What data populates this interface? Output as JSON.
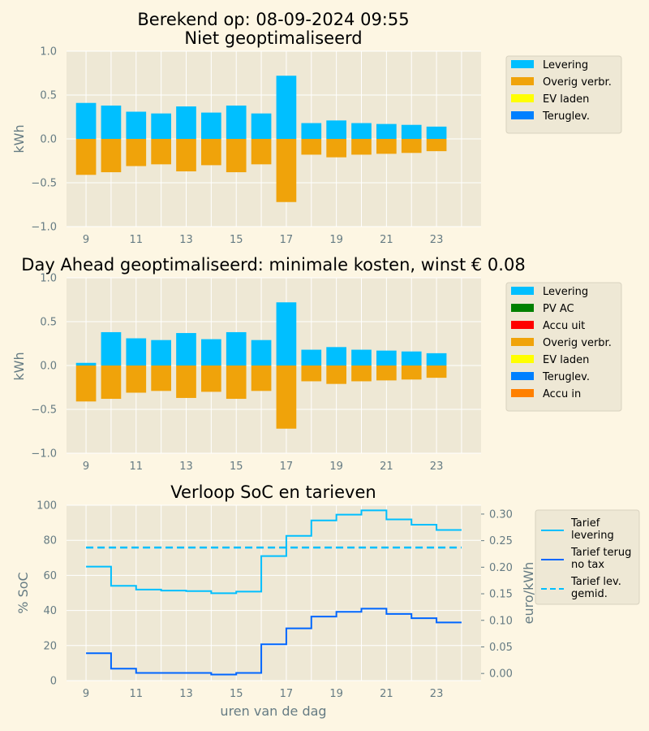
{
  "colors": {
    "background": "#fdf6e3",
    "axes_bg": "#eee8d5",
    "grid": "#ffffff",
    "tick_text": "#657b83",
    "levering": "#00bfff",
    "pv_ac": "#008000",
    "accu_uit": "#ff0000",
    "overig": "#f0a30a",
    "ev_laden": "#ffff00",
    "teruglev": "#0080ff",
    "accu_in": "#ff8000",
    "tarief_terug": "#0066ff"
  },
  "chart_data": [
    {
      "type": "bar",
      "title_line1": "Berekend op: 08-09-2024 09:55",
      "title_line2": "Niet geoptimaliseerd",
      "ylabel": "kWh",
      "xlabel": "",
      "ylim": [
        -1.0,
        1.0
      ],
      "yticks": [
        "1.0",
        "0.5",
        "0.0",
        "−0.5",
        "−1.0"
      ],
      "xticks": [
        "9",
        "11",
        "13",
        "15",
        "17",
        "19",
        "21",
        "23"
      ],
      "grid": true,
      "x": [
        9,
        10,
        11,
        12,
        13,
        14,
        15,
        16,
        17,
        18,
        19,
        20,
        21,
        22,
        23
      ],
      "series": [
        {
          "name": "Levering",
          "color_key": "levering",
          "values": [
            0.41,
            0.38,
            0.31,
            0.29,
            0.37,
            0.3,
            0.38,
            0.29,
            0.72,
            0.18,
            0.21,
            0.18,
            0.17,
            0.16,
            0.14
          ]
        },
        {
          "name": "Overig verbr.",
          "color_key": "overig",
          "values": [
            -0.41,
            -0.38,
            -0.31,
            -0.29,
            -0.37,
            -0.3,
            -0.38,
            -0.29,
            -0.72,
            -0.18,
            -0.21,
            -0.18,
            -0.17,
            -0.16,
            -0.14
          ]
        },
        {
          "name": "EV laden",
          "color_key": "ev_laden",
          "values": [
            0,
            0,
            0,
            0,
            0,
            0,
            0,
            0,
            0,
            0,
            0,
            0,
            0,
            0,
            0
          ]
        },
        {
          "name": "Teruglev.",
          "color_key": "teruglev",
          "values": [
            0,
            0,
            0,
            0,
            0,
            0,
            0,
            0,
            0,
            0,
            0,
            0,
            0,
            0,
            0
          ]
        }
      ],
      "legend_position": "right"
    },
    {
      "type": "bar",
      "title": "Day Ahead geoptimaliseerd: minimale kosten, winst € 0.08",
      "ylabel": "kWh",
      "xlabel": "",
      "ylim": [
        -1.0,
        1.0
      ],
      "yticks": [
        "1.0",
        "0.5",
        "0.0",
        "−0.5",
        "−1.0"
      ],
      "xticks": [
        "9",
        "11",
        "13",
        "15",
        "17",
        "19",
        "21",
        "23"
      ],
      "grid": true,
      "x": [
        9,
        10,
        11,
        12,
        13,
        14,
        15,
        16,
        17,
        18,
        19,
        20,
        21,
        22,
        23
      ],
      "series": [
        {
          "name": "Levering",
          "color_key": "levering",
          "values": [
            0.03,
            0.38,
            0.31,
            0.29,
            0.37,
            0.3,
            0.38,
            0.29,
            0.72,
            0.18,
            0.21,
            0.18,
            0.17,
            0.16,
            0.14
          ]
        },
        {
          "name": "PV AC",
          "color_key": "pv_ac",
          "values": [
            0,
            0,
            0,
            0,
            0,
            0,
            0,
            0,
            0,
            0,
            0,
            0,
            0,
            0,
            0
          ]
        },
        {
          "name": "Accu uit",
          "color_key": "accu_uit",
          "values": [
            0,
            0,
            0,
            0,
            0,
            0,
            0,
            0,
            0,
            0,
            0,
            0,
            0,
            0,
            0
          ]
        },
        {
          "name": "Overig verbr.",
          "color_key": "overig",
          "values": [
            -0.41,
            -0.38,
            -0.31,
            -0.29,
            -0.37,
            -0.3,
            -0.38,
            -0.29,
            -0.72,
            -0.18,
            -0.21,
            -0.18,
            -0.17,
            -0.16,
            -0.14
          ]
        },
        {
          "name": "EV laden",
          "color_key": "ev_laden",
          "values": [
            0,
            0,
            0,
            0,
            0,
            0,
            0,
            0,
            0,
            0,
            0,
            0,
            0,
            0,
            0
          ]
        },
        {
          "name": "Teruglev.",
          "color_key": "teruglev",
          "values": [
            0,
            0,
            0,
            0,
            0,
            0,
            0,
            0,
            0,
            0,
            0,
            0,
            0,
            0,
            0
          ]
        },
        {
          "name": "Accu in",
          "color_key": "accu_in",
          "values": [
            0,
            0,
            0,
            0,
            0,
            0,
            0,
            0,
            0,
            0,
            0,
            0,
            0,
            0,
            0
          ]
        }
      ],
      "legend_position": "right"
    },
    {
      "type": "line",
      "title": "Verloop SoC en tarieven",
      "xlabel": "uren van de dag",
      "ylabel": "% SoC",
      "ylabel2": "euro/kWh",
      "ylim": [
        0,
        100
      ],
      "ylim2": [
        -0.0135,
        0.3167
      ],
      "yticks": [
        "100",
        "80",
        "60",
        "40",
        "20",
        "0"
      ],
      "yticks2": [
        "0.30",
        "0.25",
        "0.20",
        "0.15",
        "0.10",
        "0.05",
        "0.00"
      ],
      "xticks": [
        "9",
        "11",
        "13",
        "15",
        "17",
        "19",
        "21",
        "23"
      ],
      "grid": true,
      "x_steps": [
        9,
        10,
        11,
        12,
        13,
        14,
        15,
        16,
        17,
        18,
        19,
        20,
        21,
        22,
        23,
        24
      ],
      "series": [
        {
          "name": "Tarief\nlevering",
          "color_key": "levering",
          "style": "steps",
          "values": [
            0.201,
            0.165,
            0.158,
            0.156,
            0.155,
            0.151,
            0.154,
            0.221,
            0.259,
            0.288,
            0.299,
            0.307,
            0.29,
            0.28,
            0.27,
            0.27
          ]
        },
        {
          "name": "Tarief terug\nno tax",
          "color_key": "tarief_terug",
          "style": "steps",
          "values": [
            0.038,
            0.009,
            0.001,
            0.001,
            0.001,
            -0.002,
            0.001,
            0.055,
            0.085,
            0.107,
            0.116,
            0.122,
            0.112,
            0.104,
            0.096,
            0.096
          ]
        },
        {
          "name": "Tarief lev.\ngemid.",
          "color_key": "levering",
          "style": "dashed",
          "values": [
            0.237,
            0.237
          ]
        }
      ],
      "legend_position": "right"
    }
  ]
}
